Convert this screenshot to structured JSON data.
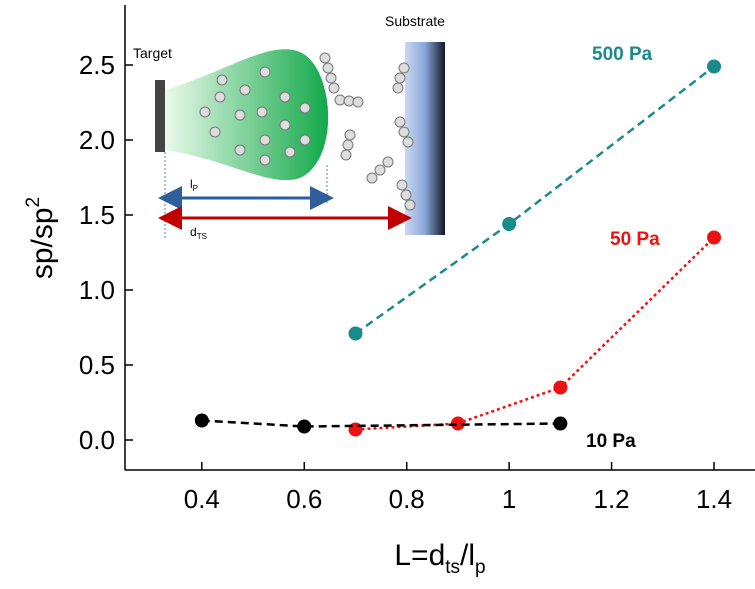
{
  "chart_data": {
    "type": "line",
    "ylabel": {
      "text": "sp/sp",
      "sup": "2"
    },
    "xlabel": [
      "L=d",
      "ts",
      "/l",
      "p"
    ],
    "xlim": [
      0.25,
      1.48
    ],
    "ylim": [
      -0.2,
      2.9
    ],
    "xticks": [
      0.4,
      0.6,
      0.8,
      1.0,
      1.2,
      1.4
    ],
    "yticks": [
      {
        "value": 0,
        "label": "0.0"
      },
      0.5,
      {
        "value": 1,
        "label": "1.0"
      },
      1.5,
      {
        "value": 2,
        "label": "2.0"
      },
      2.5
    ],
    "series": [
      {
        "name": "500 Pa",
        "color": "#1a8a8a",
        "dash": "dashed",
        "x": [
          0.7,
          1.0,
          1.4
        ],
        "values": [
          0.71,
          1.44,
          2.49
        ]
      },
      {
        "name": "50 Pa",
        "color": "#ee1111",
        "dash": "dotted",
        "x": [
          0.7,
          0.9,
          1.1,
          1.4
        ],
        "values": [
          0.07,
          0.11,
          0.35,
          1.35
        ]
      },
      {
        "name": "10 Pa",
        "color": "#000000",
        "dash": "dashed",
        "x": [
          0.4,
          0.6,
          1.1
        ],
        "values": [
          0.13,
          0.09,
          0.11
        ]
      }
    ],
    "inset": {
      "target": "Target",
      "substrate": "Substrate",
      "lp": [
        "l",
        "P"
      ],
      "dts": [
        "d",
        "TS"
      ]
    }
  }
}
